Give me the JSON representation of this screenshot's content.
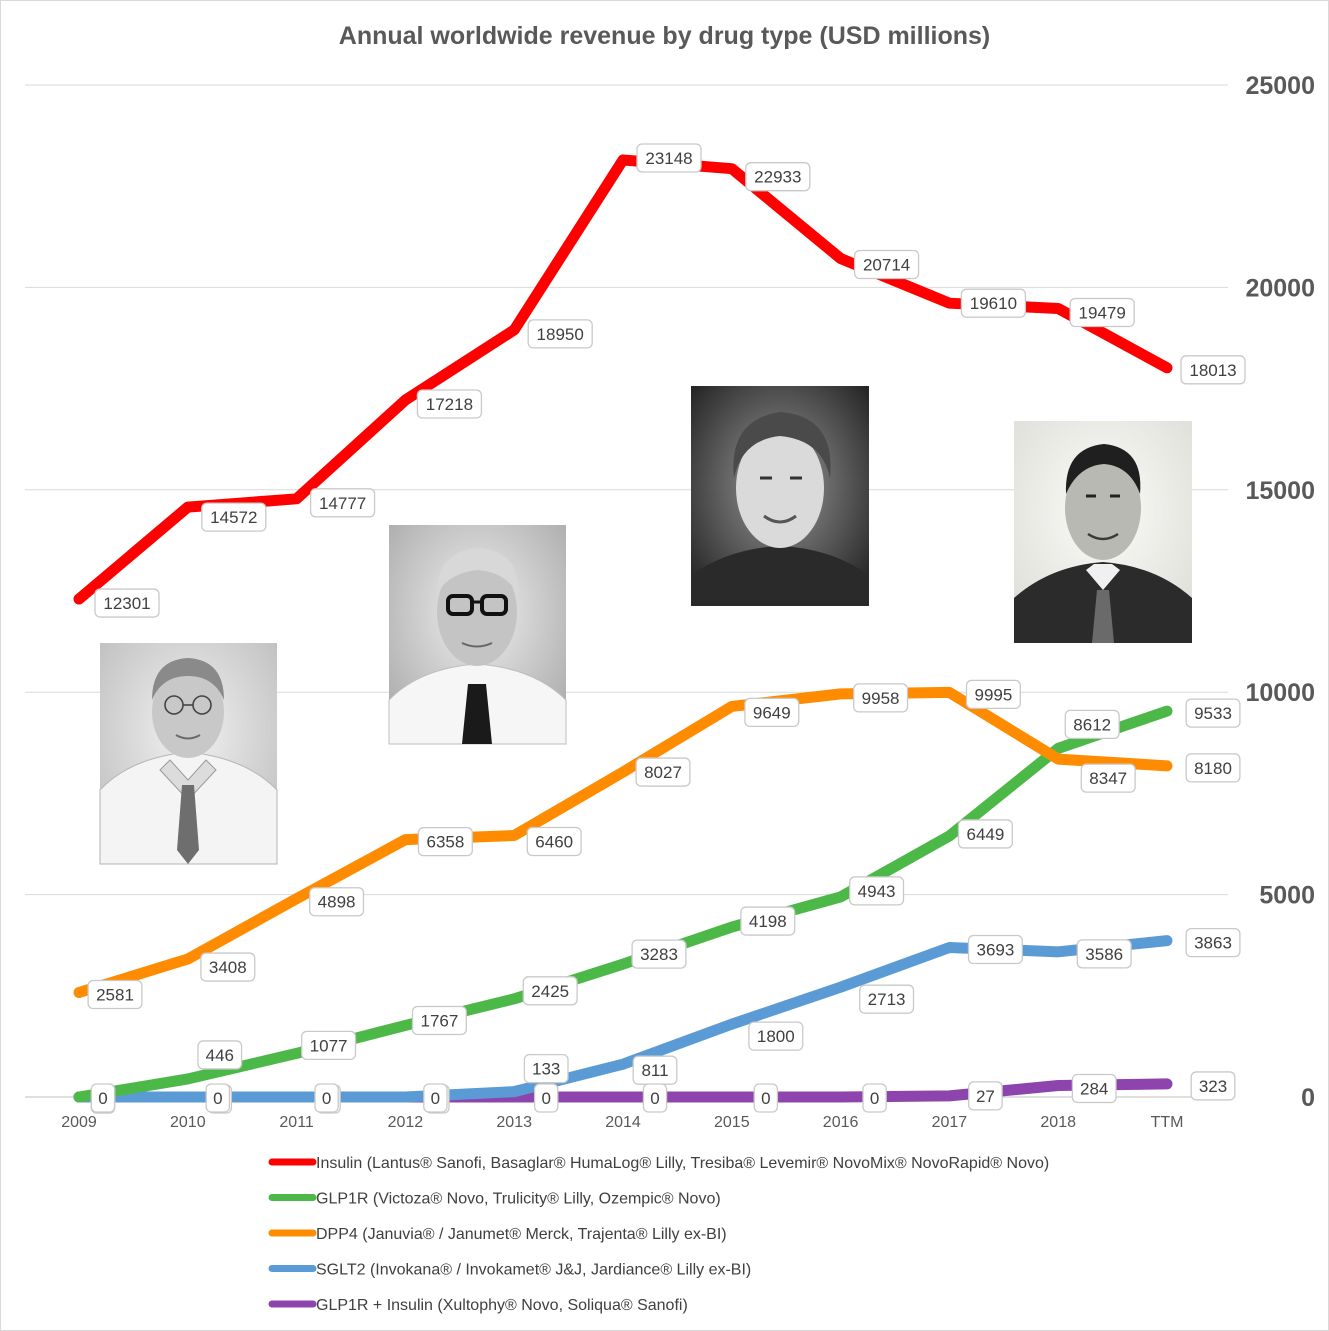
{
  "chart_data": {
    "type": "line",
    "title": "Annual worldwide revenue by drug type (USD millions)",
    "categories": [
      "2009",
      "2010",
      "2011",
      "2012",
      "2013",
      "2014",
      "2015",
      "2016",
      "2017",
      "2018",
      "TTM"
    ],
    "ylim": [
      0,
      25000
    ],
    "yticks": [
      "25000",
      "20000",
      "15000",
      "10000",
      "5000",
      "0"
    ],
    "ytick_values": [
      25000,
      20000,
      15000,
      10000,
      5000,
      0
    ],
    "grid": true,
    "legend_position": "bottom",
    "series": [
      {
        "name": "Insulin (Lantus® Sanofi, Basaglar® HumaLog® Lilly, Tresiba® Levemir® NovoMix® NovoRapid® Novo)",
        "color": "#ff0000",
        "values": [
          12301,
          14572,
          14777,
          17218,
          18950,
          23148,
          22933,
          20714,
          19610,
          19479,
          18013
        ],
        "labels": [
          "12301",
          "14572",
          "14777",
          "17218",
          "18950",
          "23148",
          "22933",
          "20714",
          "19610",
          "19479",
          "18013"
        ]
      },
      {
        "name": "GLP1R (Victoza® Novo, Trulicity® Lilly, Ozempic® Novo)",
        "color": "#4cb848",
        "values": [
          0,
          446,
          1077,
          1767,
          2425,
          3283,
          4198,
          4943,
          6449,
          8612,
          9533
        ],
        "labels": [
          "0",
          "446",
          "1077",
          "1767",
          "2425",
          "3283",
          "4198",
          "4943",
          "6449",
          "8612",
          "9533"
        ]
      },
      {
        "name": "DPP4 (Januvia® / Janumet® Merck, Trajenta® Lilly ex-BI)",
        "color": "#ff8c00",
        "values": [
          2581,
          3408,
          4898,
          6358,
          6460,
          8027,
          9649,
          9958,
          9995,
          8347,
          8180
        ],
        "labels": [
          "2581",
          "3408",
          "4898",
          "6358",
          "6460",
          "8027",
          "9649",
          "9958",
          "9995",
          "8347",
          "8180"
        ]
      },
      {
        "name": "SGLT2 (Invokana® / Invokamet® J&J, Jardiance® Lilly ex-BI)",
        "color": "#5b9bd5",
        "values": [
          0,
          0,
          0,
          0,
          133,
          811,
          1800,
          2713,
          3693,
          3586,
          3863
        ],
        "labels": [
          "0",
          "0",
          "0",
          "0",
          "133",
          "811",
          "1800",
          "2713",
          "3693",
          "3586",
          "3863"
        ]
      },
      {
        "name": "GLP1R + Insulin (Xultophy® Novo, Soliqua® Sanofi)",
        "color": "#8e44ad",
        "values": [
          0,
          0,
          0,
          0,
          0,
          0,
          0,
          0,
          27,
          284,
          323
        ],
        "labels": [
          "0",
          "0",
          "0",
          "0",
          "0",
          "0",
          "0",
          "0",
          "27",
          "284",
          "323"
        ]
      }
    ]
  }
}
